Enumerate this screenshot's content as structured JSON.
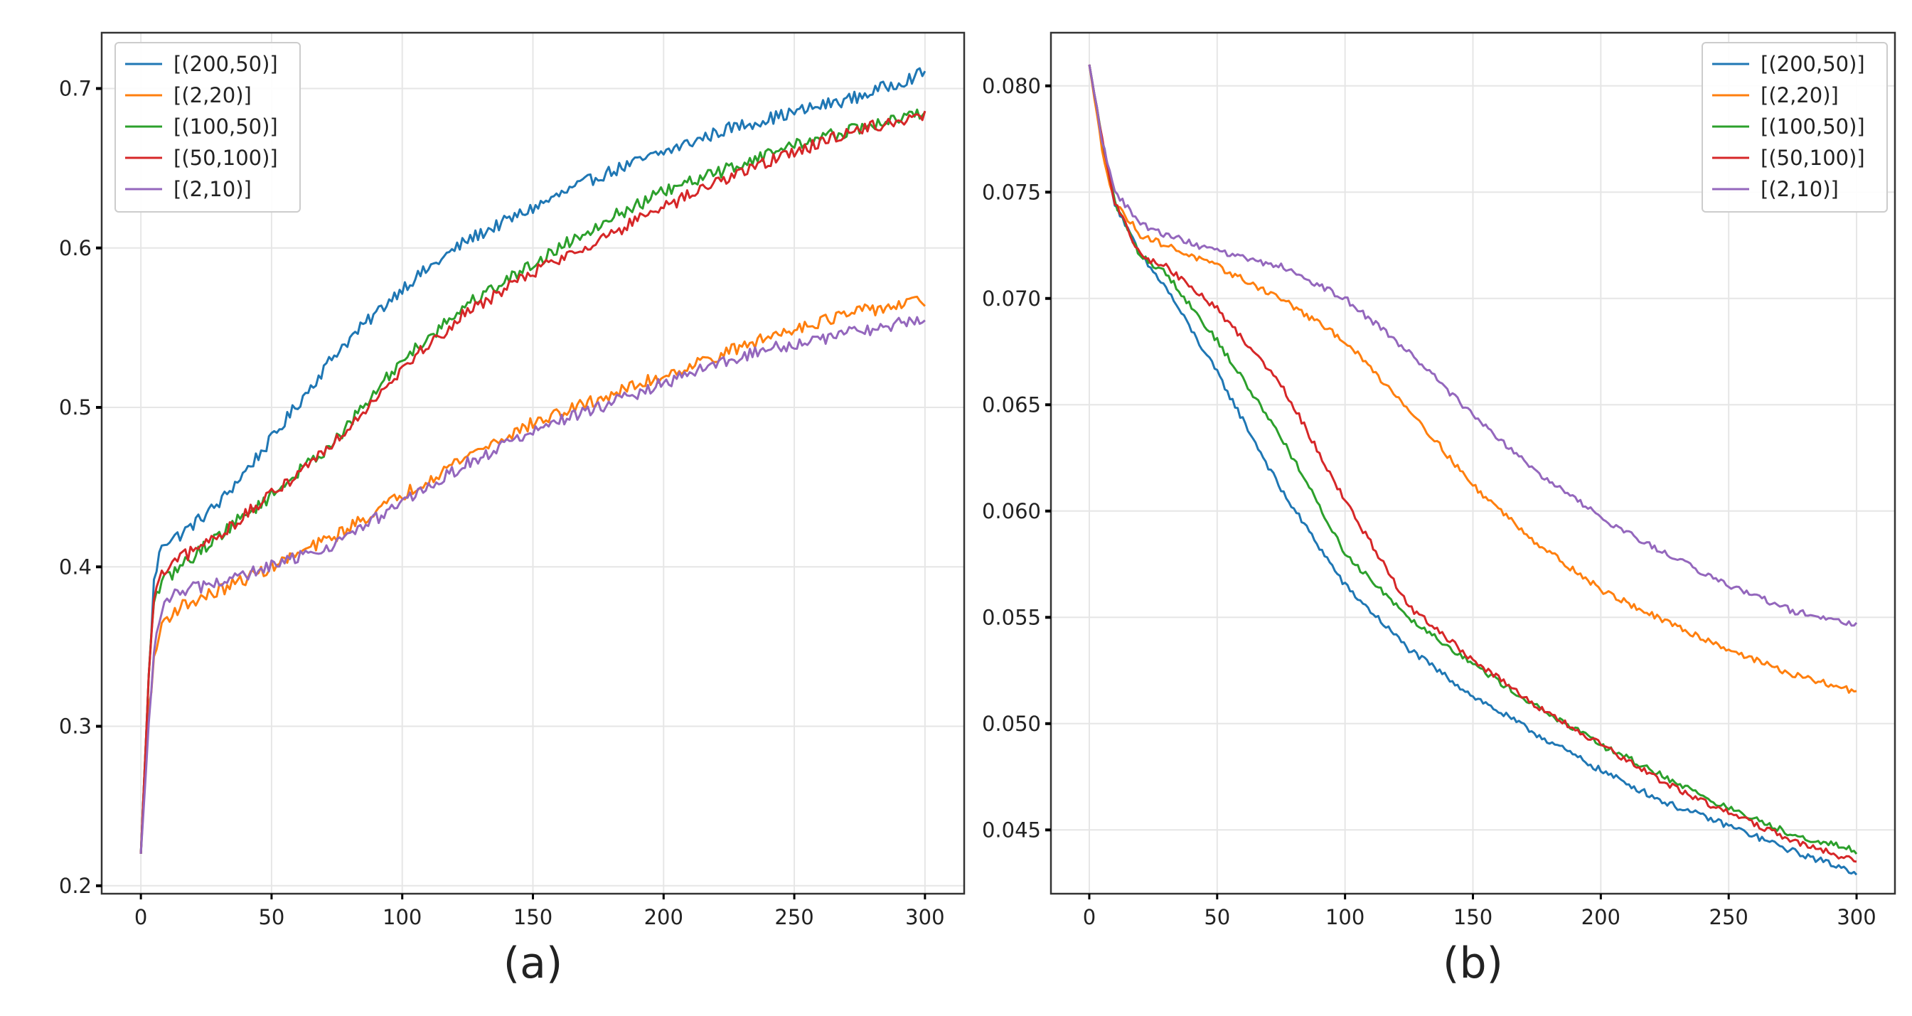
{
  "chart_data": [
    {
      "type": "line",
      "title": "",
      "caption": "(a)",
      "xlabel": "",
      "ylabel": "",
      "xlim": [
        -15,
        315
      ],
      "ylim": [
        0.195,
        0.735
      ],
      "x_ticks": [
        0,
        50,
        100,
        150,
        200,
        250,
        300
      ],
      "y_ticks": [
        0.2,
        0.3,
        0.4,
        0.5,
        0.6,
        0.7
      ],
      "x_tick_labels": [
        "0",
        "50",
        "100",
        "150",
        "200",
        "250",
        "300"
      ],
      "y_tick_labels": [
        "0.2",
        "0.3",
        "0.4",
        "0.5",
        "0.6",
        "0.7"
      ],
      "grid": true,
      "legend_position": "top-left",
      "noise": 0.004,
      "series": [
        {
          "name": "[(200,50)]",
          "color": "#1f77b4",
          "x": [
            0,
            3,
            5,
            8,
            15,
            30,
            50,
            75,
            100,
            125,
            150,
            175,
            200,
            225,
            250,
            275,
            300
          ],
          "y": [
            0.22,
            0.33,
            0.39,
            0.415,
            0.42,
            0.44,
            0.48,
            0.535,
            0.575,
            0.605,
            0.625,
            0.645,
            0.66,
            0.675,
            0.685,
            0.695,
            0.71
          ]
        },
        {
          "name": "[(2,20)]",
          "color": "#ff7f0e",
          "x": [
            0,
            3,
            5,
            8,
            15,
            30,
            50,
            75,
            100,
            125,
            150,
            175,
            200,
            225,
            250,
            275,
            300
          ],
          "y": [
            0.22,
            0.31,
            0.34,
            0.365,
            0.375,
            0.385,
            0.4,
            0.42,
            0.445,
            0.47,
            0.49,
            0.505,
            0.52,
            0.535,
            0.55,
            0.56,
            0.567
          ]
        },
        {
          "name": "[(100,50)]",
          "color": "#2ca02c",
          "x": [
            0,
            3,
            5,
            8,
            15,
            30,
            50,
            75,
            100,
            125,
            150,
            175,
            200,
            225,
            250,
            275,
            300
          ],
          "y": [
            0.22,
            0.33,
            0.38,
            0.39,
            0.4,
            0.42,
            0.445,
            0.48,
            0.53,
            0.565,
            0.59,
            0.615,
            0.635,
            0.65,
            0.665,
            0.675,
            0.685
          ]
        },
        {
          "name": "[(50,100)]",
          "color": "#d62728",
          "x": [
            0,
            3,
            5,
            8,
            15,
            30,
            50,
            75,
            100,
            125,
            150,
            175,
            200,
            225,
            250,
            275,
            300
          ],
          "y": [
            0.22,
            0.33,
            0.38,
            0.395,
            0.405,
            0.42,
            0.445,
            0.48,
            0.525,
            0.56,
            0.585,
            0.605,
            0.625,
            0.645,
            0.66,
            0.675,
            0.682
          ]
        },
        {
          "name": "[(2,10)]",
          "color": "#9467bd",
          "x": [
            0,
            3,
            5,
            8,
            15,
            30,
            50,
            75,
            100,
            125,
            150,
            175,
            200,
            225,
            250,
            275,
            300
          ],
          "y": [
            0.22,
            0.3,
            0.345,
            0.375,
            0.385,
            0.39,
            0.4,
            0.415,
            0.44,
            0.465,
            0.485,
            0.5,
            0.515,
            0.53,
            0.54,
            0.548,
            0.555
          ]
        }
      ]
    },
    {
      "type": "line",
      "title": "",
      "caption": "(b)",
      "xlabel": "",
      "ylabel": "",
      "xlim": [
        -15,
        315
      ],
      "ylim": [
        0.042,
        0.0825
      ],
      "x_ticks": [
        0,
        50,
        100,
        150,
        200,
        250,
        300
      ],
      "y_ticks": [
        0.045,
        0.05,
        0.055,
        0.06,
        0.065,
        0.07,
        0.075,
        0.08
      ],
      "x_tick_labels": [
        "0",
        "50",
        "100",
        "150",
        "200",
        "250",
        "300"
      ],
      "y_tick_labels": [
        "0.045",
        "0.050",
        "0.055",
        "0.060",
        "0.065",
        "0.070",
        "0.075",
        "0.080"
      ],
      "grid": true,
      "legend_position": "top-right",
      "noise": 0.00015,
      "series": [
        {
          "name": "[(200,50)]",
          "color": "#1f77b4",
          "x": [
            0,
            5,
            10,
            20,
            30,
            50,
            75,
            100,
            125,
            150,
            175,
            200,
            225,
            250,
            275,
            300
          ],
          "y": [
            0.081,
            0.0775,
            0.0745,
            0.072,
            0.0705,
            0.0665,
            0.061,
            0.0565,
            0.0535,
            0.0513,
            0.0495,
            0.0478,
            0.0463,
            0.0452,
            0.044,
            0.043
          ]
        },
        {
          "name": "[(2,20)]",
          "color": "#ff7f0e",
          "x": [
            0,
            5,
            10,
            20,
            30,
            50,
            75,
            100,
            125,
            150,
            175,
            200,
            225,
            250,
            275,
            300
          ],
          "y": [
            0.081,
            0.077,
            0.0745,
            0.073,
            0.0725,
            0.0715,
            0.07,
            0.068,
            0.0648,
            0.0612,
            0.0585,
            0.0563,
            0.0548,
            0.0535,
            0.0523,
            0.0515
          ]
        },
        {
          "name": "[(100,50)]",
          "color": "#2ca02c",
          "x": [
            0,
            5,
            10,
            20,
            30,
            50,
            75,
            100,
            125,
            150,
            175,
            200,
            225,
            250,
            275,
            300
          ],
          "y": [
            0.081,
            0.0775,
            0.0745,
            0.072,
            0.0712,
            0.068,
            0.0635,
            0.058,
            0.055,
            0.0528,
            0.0508,
            0.049,
            0.0475,
            0.046,
            0.0448,
            0.044
          ]
        },
        {
          "name": "[(50,100)]",
          "color": "#d62728",
          "x": [
            0,
            5,
            10,
            20,
            30,
            50,
            75,
            100,
            125,
            150,
            175,
            200,
            225,
            250,
            275,
            300
          ],
          "y": [
            0.081,
            0.0775,
            0.0745,
            0.072,
            0.0715,
            0.0695,
            0.066,
            0.0605,
            0.0555,
            0.053,
            0.0508,
            0.049,
            0.0472,
            0.0458,
            0.0445,
            0.0435
          ]
        },
        {
          "name": "[(2,10)]",
          "color": "#9467bd",
          "x": [
            0,
            5,
            10,
            20,
            30,
            50,
            75,
            100,
            125,
            150,
            175,
            200,
            225,
            250,
            275,
            300
          ],
          "y": [
            0.081,
            0.0775,
            0.075,
            0.0735,
            0.073,
            0.0722,
            0.0715,
            0.07,
            0.0675,
            0.0645,
            0.0618,
            0.0597,
            0.058,
            0.0565,
            0.0553,
            0.0546
          ]
        }
      ]
    }
  ]
}
